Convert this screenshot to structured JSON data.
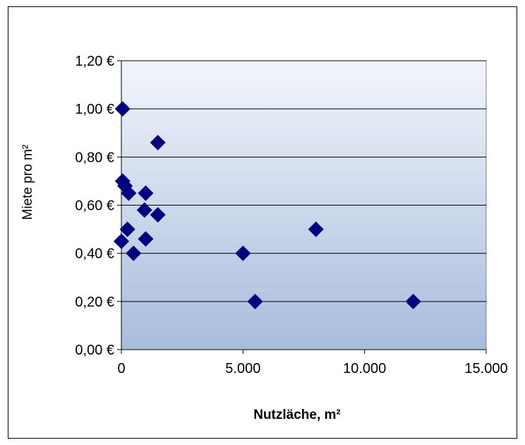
{
  "chart_data": {
    "type": "scatter",
    "title": "",
    "xlabel": "Nutzläche, m²",
    "ylabel": "Miete pro m²",
    "xlim": [
      0,
      15000
    ],
    "ylim": [
      0,
      1.2
    ],
    "x_ticks": [
      0,
      5000,
      10000,
      15000
    ],
    "x_tick_labels": [
      "0",
      "5.000",
      "10.000",
      "15.000"
    ],
    "y_ticks": [
      0,
      0.2,
      0.4,
      0.6,
      0.8,
      1.0,
      1.2
    ],
    "y_tick_labels": [
      "0,00 €",
      "0,20 €",
      "0,40 €",
      "0,60 €",
      "0,80 €",
      "1,00 €",
      "1,20 €"
    ],
    "grid": "horizontal",
    "legend": "none",
    "marker": "diamond",
    "colors": {
      "marker": "#000080",
      "plot_bg_top": "#f2f5fb",
      "plot_bg_bottom": "#a8bcdc",
      "gridline": "#000000"
    },
    "series": [
      {
        "points": [
          {
            "x": 50,
            "y": 1.0
          },
          {
            "x": 50,
            "y": 0.7
          },
          {
            "x": 150,
            "y": 0.68
          },
          {
            "x": 300,
            "y": 0.65
          },
          {
            "x": 1000,
            "y": 0.65
          },
          {
            "x": 950,
            "y": 0.58
          },
          {
            "x": 1500,
            "y": 0.86
          },
          {
            "x": 1500,
            "y": 0.56
          },
          {
            "x": 250,
            "y": 0.5
          },
          {
            "x": 0,
            "y": 0.45
          },
          {
            "x": 1000,
            "y": 0.46
          },
          {
            "x": 500,
            "y": 0.4
          },
          {
            "x": 5000,
            "y": 0.4
          },
          {
            "x": 8000,
            "y": 0.5
          },
          {
            "x": 5500,
            "y": 0.2
          },
          {
            "x": 12000,
            "y": 0.2
          }
        ]
      }
    ]
  }
}
